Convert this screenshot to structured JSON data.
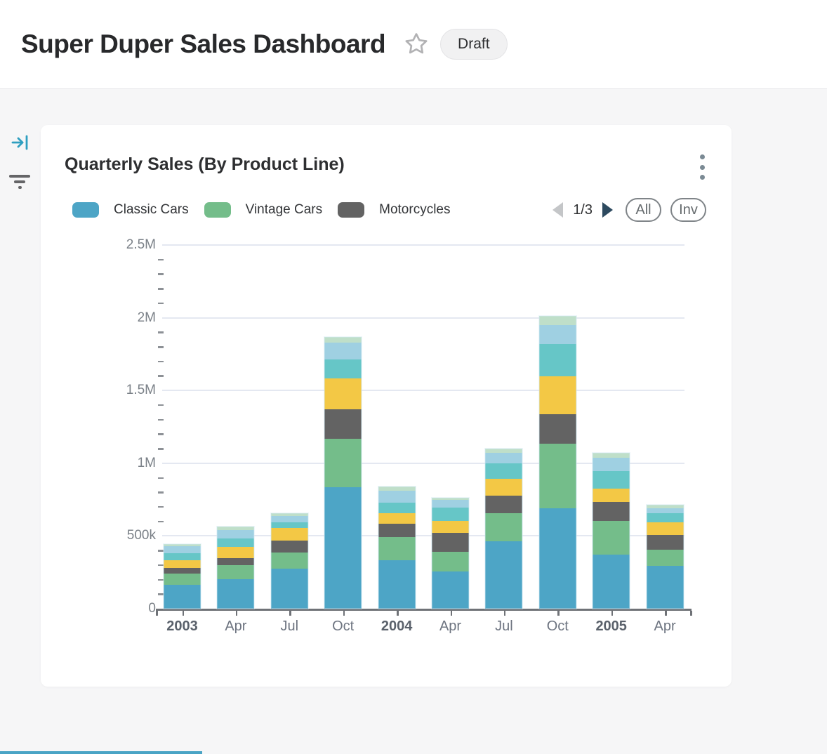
{
  "header": {
    "title": "Super Duper Sales Dashboard",
    "status_badge": "Draft"
  },
  "side_panel_icons": {
    "collapse": "arrow-to-bar",
    "filter": "filter-lines"
  },
  "card": {
    "title": "Quarterly Sales (By Product Line)",
    "menu_icon": "kebab-vertical-dots",
    "legend": {
      "items": [
        {
          "label": "Classic Cars",
          "color": "#4da5c6"
        },
        {
          "label": "Vintage Cars",
          "color": "#74bd8a"
        },
        {
          "label": "Motorcycles",
          "color": "#636363"
        }
      ],
      "pagination": {
        "display": "1/3",
        "current_page": 1,
        "total_pages": 3
      },
      "select_all_label": "All",
      "invert_label": "Inv"
    }
  },
  "chart_data": {
    "type": "bar",
    "stacked": true,
    "title": "Quarterly Sales (By Product Line)",
    "categories": [
      "2003",
      "Apr",
      "Jul",
      "Oct",
      "2004",
      "Apr",
      "Jul",
      "Oct",
      "2005",
      "Apr"
    ],
    "series": [
      {
        "name": "Classic Cars",
        "color": "#4da5c6",
        "values": [
          165000,
          205000,
          274000,
          833000,
          334000,
          258000,
          461000,
          690000,
          372000,
          295000
        ]
      },
      {
        "name": "Vintage Cars",
        "color": "#74bd8a",
        "values": [
          78000,
          92000,
          113000,
          335000,
          156000,
          135000,
          197000,
          443000,
          232000,
          110000
        ]
      },
      {
        "name": "Motorcycles",
        "color": "#636363",
        "values": [
          39000,
          53000,
          81000,
          204000,
          93000,
          129000,
          121000,
          202000,
          131000,
          100000
        ]
      },
      {
        "name": "",
        "color": "#f3c845",
        "values": [
          53000,
          76000,
          86000,
          209000,
          73000,
          80000,
          116000,
          261000,
          92000,
          90000
        ]
      },
      {
        "name": "",
        "color": "#66c6c7",
        "values": [
          47000,
          58000,
          39000,
          131000,
          73000,
          94000,
          105000,
          222000,
          121000,
          63000
        ]
      },
      {
        "name": "",
        "color": "#9fd0e2",
        "values": [
          48000,
          55000,
          45000,
          117000,
          81000,
          51000,
          73000,
          132000,
          92000,
          34000
        ]
      },
      {
        "name": "",
        "color": "#bfdfc9",
        "values": [
          16000,
          24000,
          19000,
          40000,
          28000,
          16000,
          29000,
          65000,
          34000,
          24000
        ]
      }
    ],
    "xlabel": "",
    "ylabel": "",
    "ylim": [
      0,
      2500000
    ],
    "y_ticks": [
      {
        "value": 0,
        "label": "0"
      },
      {
        "value": 500000,
        "label": "500k"
      },
      {
        "value": 1000000,
        "label": "1M"
      },
      {
        "value": 1500000,
        "label": "1.5M"
      },
      {
        "value": 2000000,
        "label": "2M"
      },
      {
        "value": 2500000,
        "label": "2.5M"
      }
    ],
    "minor_tick_step": 100000,
    "grid": "horizontal-major",
    "legend_position": "top",
    "note": "Legend shows page 1 of 3; series 4-7 appear as unlabeled colors in the stacks."
  },
  "colors": {
    "page_background": "#f6f6f7",
    "card_background": "#ffffff",
    "axis_line": "#6f7277",
    "gridline": "#e4e8f1",
    "collapse_icon": "#2f9fc0",
    "filter_icon": "#656567",
    "pager_next": "#2d4a5f",
    "pager_prev_disabled": "#c4c6c8",
    "bottom_peek_strip": "#4aa4c5"
  }
}
